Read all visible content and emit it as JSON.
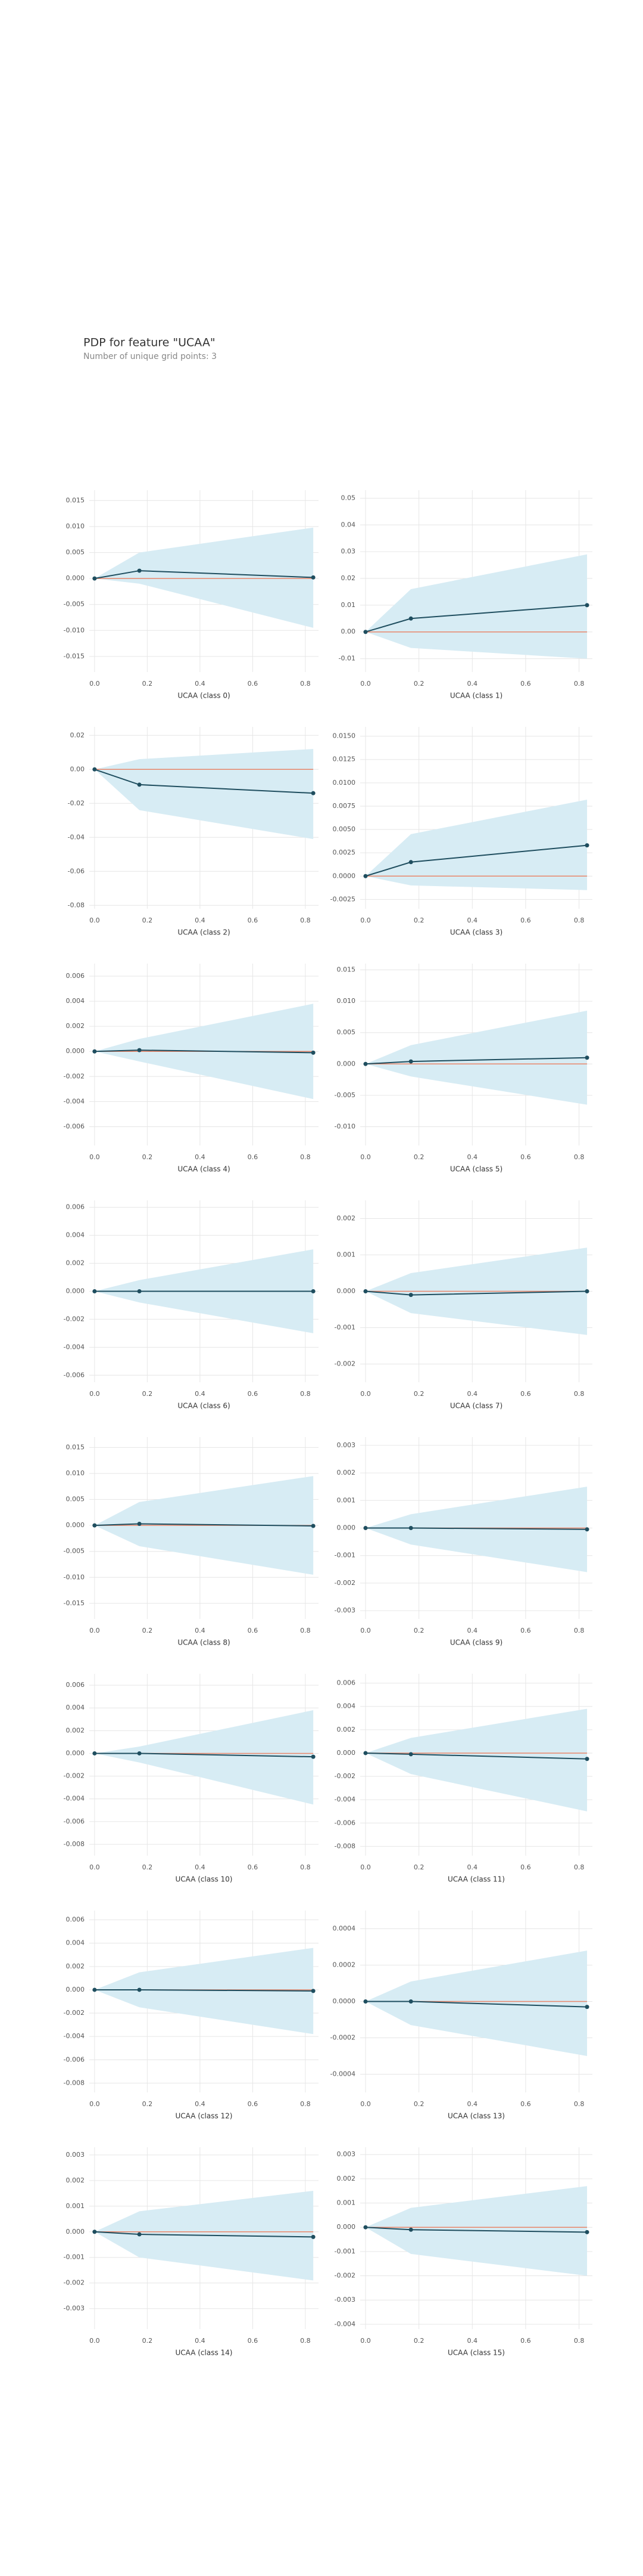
{
  "title": "PDP for feature \"UCAA\"",
  "subtitle": "Number of unique grid points: 3",
  "chart_data": [
    {
      "type": "line",
      "xlabel": "UCAA (class 0)",
      "x": [
        0,
        0.17,
        0.83
      ],
      "values": [
        0,
        0.0015,
        0.0002
      ],
      "upper": [
        0,
        0.005,
        0.0098
      ],
      "lower": [
        0,
        -0.001,
        -0.0095
      ],
      "xlim": [
        -0.02,
        0.85
      ],
      "ylim": [
        -0.018,
        0.017
      ],
      "xticks": [
        {
          "value": 0,
          "label": "0.0"
        },
        0.2,
        0.4,
        0.6,
        0.8
      ],
      "yticks": [
        0.015,
        {
          "value": 0.01,
          "label": "0.010"
        },
        0.005,
        {
          "value": 0,
          "label": "0.000"
        },
        -0.005,
        {
          "value": -0.01,
          "label": "-0.010"
        },
        -0.015
      ],
      "grid": true,
      "color": "#1f4e5f",
      "band_color": "#d7ecf4",
      "hline": 0,
      "hline_color": "#e8866a"
    },
    {
      "type": "line",
      "xlabel": "UCAA (class 1)",
      "x": [
        0,
        0.17,
        0.83
      ],
      "values": [
        0,
        0.005,
        0.01
      ],
      "upper": [
        0,
        0.016,
        0.029
      ],
      "lower": [
        0,
        -0.006,
        -0.01
      ],
      "xlim": [
        -0.02,
        0.85
      ],
      "ylim": [
        -0.015,
        0.053
      ],
      "xticks": [
        {
          "value": 0,
          "label": "0.0"
        },
        0.2,
        0.4,
        0.6,
        0.8
      ],
      "yticks": [
        0.05,
        0.04,
        0.03,
        0.02,
        0.01,
        {
          "value": 0,
          "label": "0.00"
        },
        -0.01
      ],
      "grid": true,
      "color": "#1f4e5f",
      "band_color": "#d7ecf4",
      "hline": 0,
      "hline_color": "#e8866a"
    },
    {
      "type": "line",
      "xlabel": "UCAA (class 2)",
      "x": [
        0,
        0.17,
        0.83
      ],
      "values": [
        0,
        -0.009,
        -0.014
      ],
      "upper": [
        0,
        0.006,
        0.012
      ],
      "lower": [
        0,
        -0.024,
        -0.041
      ],
      "xlim": [
        -0.02,
        0.85
      ],
      "ylim": [
        -0.082,
        0.025
      ],
      "xticks": [
        {
          "value": 0,
          "label": "0.0"
        },
        0.2,
        0.4,
        0.6,
        0.8
      ],
      "yticks": [
        0.02,
        {
          "value": 0,
          "label": "0.00"
        },
        -0.02,
        -0.04,
        -0.06,
        -0.08
      ],
      "grid": true,
      "color": "#1f4e5f",
      "band_color": "#d7ecf4",
      "hline": 0,
      "hline_color": "#e8866a"
    },
    {
      "type": "line",
      "xlabel": "UCAA (class 3)",
      "x": [
        0,
        0.17,
        0.83
      ],
      "values": [
        0,
        0.0015,
        0.0033
      ],
      "upper": [
        0,
        0.0045,
        0.0082
      ],
      "lower": [
        0,
        -0.001,
        -0.0015
      ],
      "xlim": [
        -0.02,
        0.85
      ],
      "ylim": [
        -0.0035,
        0.016
      ],
      "xticks": [
        {
          "value": 0,
          "label": "0.0"
        },
        0.2,
        0.4,
        0.6,
        0.8
      ],
      "yticks": [
        {
          "value": 0.015,
          "label": "0.0150"
        },
        0.0125,
        {
          "value": 0.01,
          "label": "0.0100"
        },
        0.0075,
        {
          "value": 0.005,
          "label": "0.0050"
        },
        0.0025,
        {
          "value": 0,
          "label": "0.0000"
        },
        -0.0025
      ],
      "grid": true,
      "color": "#1f4e5f",
      "band_color": "#d7ecf4",
      "hline": 0,
      "hline_color": "#e8866a"
    },
    {
      "type": "line",
      "xlabel": "UCAA (class 4)",
      "x": [
        0,
        0.17,
        0.83
      ],
      "values": [
        0,
        0.0001,
        -0.0001
      ],
      "upper": [
        0,
        0.001,
        0.0038
      ],
      "lower": [
        0,
        -0.0008,
        -0.0038
      ],
      "xlim": [
        -0.02,
        0.85
      ],
      "ylim": [
        -0.0075,
        0.007
      ],
      "xticks": [
        {
          "value": 0,
          "label": "0.0"
        },
        0.2,
        0.4,
        0.6,
        0.8
      ],
      "yticks": [
        0.006,
        0.004,
        0.002,
        {
          "value": 0,
          "label": "0.000"
        },
        -0.002,
        -0.004,
        -0.006
      ],
      "grid": true,
      "color": "#1f4e5f",
      "band_color": "#d7ecf4",
      "hline": 0,
      "hline_color": "#e8866a"
    },
    {
      "type": "line",
      "xlabel": "UCAA (class 5)",
      "x": [
        0,
        0.17,
        0.83
      ],
      "values": [
        0,
        0.0004,
        0.001
      ],
      "upper": [
        0,
        0.003,
        0.0085
      ],
      "lower": [
        0,
        -0.002,
        -0.0065
      ],
      "xlim": [
        -0.02,
        0.85
      ],
      "ylim": [
        -0.013,
        0.016
      ],
      "xticks": [
        {
          "value": 0,
          "label": "0.0"
        },
        0.2,
        0.4,
        0.6,
        0.8
      ],
      "yticks": [
        0.015,
        {
          "value": 0.01,
          "label": "0.010"
        },
        0.005,
        {
          "value": 0,
          "label": "0.000"
        },
        -0.005,
        {
          "value": -0.01,
          "label": "-0.010"
        }
      ],
      "grid": true,
      "color": "#1f4e5f",
      "band_color": "#d7ecf4",
      "hline": 0,
      "hline_color": "#e8866a"
    },
    {
      "type": "line",
      "xlabel": "UCAA (class 6)",
      "x": [
        0,
        0.17,
        0.83
      ],
      "values": [
        0,
        0,
        0
      ],
      "upper": [
        0,
        0.0008,
        0.003
      ],
      "lower": [
        0,
        -0.0008,
        -0.003
      ],
      "xlim": [
        -0.02,
        0.85
      ],
      "ylim": [
        -0.0065,
        0.0065
      ],
      "xticks": [
        {
          "value": 0,
          "label": "0.0"
        },
        0.2,
        0.4,
        0.6,
        0.8
      ],
      "yticks": [
        0.006,
        0.004,
        0.002,
        {
          "value": 0,
          "label": "0.000"
        },
        -0.002,
        -0.004,
        -0.006
      ],
      "grid": true,
      "color": "#1f4e5f",
      "band_color": "#d7ecf4",
      "hline": 0,
      "hline_color": "#e8866a"
    },
    {
      "type": "line",
      "xlabel": "UCAA (class 7)",
      "x": [
        0,
        0.17,
        0.83
      ],
      "values": [
        0,
        -0.0001,
        0
      ],
      "upper": [
        0,
        0.0005,
        0.0012
      ],
      "lower": [
        0,
        -0.0006,
        -0.0012
      ],
      "xlim": [
        -0.02,
        0.85
      ],
      "ylim": [
        -0.0025,
        0.0025
      ],
      "xticks": [
        {
          "value": 0,
          "label": "0.0"
        },
        0.2,
        0.4,
        0.6,
        0.8
      ],
      "yticks": [
        0.002,
        0.001,
        {
          "value": 0,
          "label": "0.000"
        },
        -0.001,
        -0.002
      ],
      "grid": true,
      "color": "#1f4e5f",
      "band_color": "#d7ecf4",
      "hline": 0,
      "hline_color": "#e8866a"
    },
    {
      "type": "line",
      "xlabel": "UCAA (class 8)",
      "x": [
        0,
        0.17,
        0.83
      ],
      "values": [
        0,
        0.0003,
        -0.0001
      ],
      "upper": [
        0,
        0.0045,
        0.0095
      ],
      "lower": [
        0,
        -0.004,
        -0.0095
      ],
      "xlim": [
        -0.02,
        0.85
      ],
      "ylim": [
        -0.018,
        0.017
      ],
      "xticks": [
        {
          "value": 0,
          "label": "0.0"
        },
        0.2,
        0.4,
        0.6,
        0.8
      ],
      "yticks": [
        0.015,
        {
          "value": 0.01,
          "label": "0.010"
        },
        0.005,
        {
          "value": 0,
          "label": "0.000"
        },
        -0.005,
        {
          "value": -0.01,
          "label": "-0.010"
        },
        -0.015
      ],
      "grid": true,
      "color": "#1f4e5f",
      "band_color": "#d7ecf4",
      "hline": 0,
      "hline_color": "#e8866a"
    },
    {
      "type": "line",
      "xlabel": "UCAA (class 9)",
      "x": [
        0,
        0.17,
        0.83
      ],
      "values": [
        0,
        0,
        -5e-05
      ],
      "upper": [
        0,
        0.0005,
        0.0015
      ],
      "lower": [
        0,
        -0.0006,
        -0.0016
      ],
      "xlim": [
        -0.02,
        0.85
      ],
      "ylim": [
        -0.0033,
        0.0033
      ],
      "xticks": [
        {
          "value": 0,
          "label": "0.0"
        },
        0.2,
        0.4,
        0.6,
        0.8
      ],
      "yticks": [
        0.003,
        0.002,
        0.001,
        {
          "value": 0,
          "label": "0.000"
        },
        -0.001,
        -0.002,
        -0.003
      ],
      "grid": true,
      "color": "#1f4e5f",
      "band_color": "#d7ecf4",
      "hline": 0,
      "hline_color": "#e8866a"
    },
    {
      "type": "line",
      "xlabel": "UCAA (class 10)",
      "x": [
        0,
        0.17,
        0.83
      ],
      "values": [
        0,
        0,
        -0.0003
      ],
      "upper": [
        0,
        0.0006,
        0.0038
      ],
      "lower": [
        0,
        -0.0008,
        -0.0045
      ],
      "xlim": [
        -0.02,
        0.85
      ],
      "ylim": [
        -0.009,
        0.007
      ],
      "xticks": [
        {
          "value": 0,
          "label": "0.0"
        },
        0.2,
        0.4,
        0.6,
        0.8
      ],
      "yticks": [
        0.006,
        0.004,
        0.002,
        {
          "value": 0,
          "label": "0.000"
        },
        -0.002,
        -0.004,
        -0.006,
        -0.008
      ],
      "grid": true,
      "color": "#1f4e5f",
      "band_color": "#d7ecf4",
      "hline": 0,
      "hline_color": "#e8866a"
    },
    {
      "type": "line",
      "xlabel": "UCAA (class 11)",
      "x": [
        0,
        0.17,
        0.83
      ],
      "values": [
        0,
        -0.0001,
        -0.0005
      ],
      "upper": [
        0,
        0.0013,
        0.0038
      ],
      "lower": [
        0,
        -0.0018,
        -0.005
      ],
      "xlim": [
        -0.02,
        0.85
      ],
      "ylim": [
        -0.0088,
        0.0068
      ],
      "xticks": [
        {
          "value": 0,
          "label": "0.0"
        },
        0.2,
        0.4,
        0.6,
        0.8
      ],
      "yticks": [
        0.006,
        0.004,
        0.002,
        {
          "value": 0,
          "label": "0.000"
        },
        -0.002,
        -0.004,
        -0.006,
        -0.008
      ],
      "grid": true,
      "color": "#1f4e5f",
      "band_color": "#d7ecf4",
      "hline": 0,
      "hline_color": "#e8866a"
    },
    {
      "type": "line",
      "xlabel": "UCAA (class 12)",
      "x": [
        0,
        0.17,
        0.83
      ],
      "values": [
        0,
        0,
        -0.0001
      ],
      "upper": [
        0,
        0.0015,
        0.0036
      ],
      "lower": [
        0,
        -0.0015,
        -0.0038
      ],
      "xlim": [
        -0.02,
        0.85
      ],
      "ylim": [
        -0.0088,
        0.0068
      ],
      "xticks": [
        {
          "value": 0,
          "label": "0.0"
        },
        0.2,
        0.4,
        0.6,
        0.8
      ],
      "yticks": [
        0.006,
        0.004,
        0.002,
        {
          "value": 0,
          "label": "0.000"
        },
        -0.002,
        -0.004,
        -0.006,
        -0.008
      ],
      "grid": true,
      "color": "#1f4e5f",
      "band_color": "#d7ecf4",
      "hline": 0,
      "hline_color": "#e8866a"
    },
    {
      "type": "line",
      "xlabel": "UCAA (class 13)",
      "x": [
        0,
        0.17,
        0.83
      ],
      "values": [
        0,
        0,
        -3e-05
      ],
      "upper": [
        0,
        0.00011,
        0.00028
      ],
      "lower": [
        0,
        -0.00013,
        -0.0003
      ],
      "xlim": [
        -0.02,
        0.85
      ],
      "ylim": [
        -0.0005,
        0.0005
      ],
      "xticks": [
        {
          "value": 0,
          "label": "0.0"
        },
        0.2,
        0.4,
        0.6,
        0.8
      ],
      "yticks": [
        0.0004,
        0.0002,
        {
          "value": 0,
          "label": "0.0000"
        },
        -0.0002,
        -0.0004
      ],
      "grid": true,
      "color": "#1f4e5f",
      "band_color": "#d7ecf4",
      "hline": 0,
      "hline_color": "#e8866a"
    },
    {
      "type": "line",
      "xlabel": "UCAA (class 14)",
      "x": [
        0,
        0.17,
        0.83
      ],
      "values": [
        0,
        -0.0001,
        -0.0002
      ],
      "upper": [
        0,
        0.0008,
        0.0016
      ],
      "lower": [
        0,
        -0.001,
        -0.0019
      ],
      "xlim": [
        -0.02,
        0.85
      ],
      "ylim": [
        -0.0038,
        0.0033
      ],
      "xticks": [
        {
          "value": 0,
          "label": "0.0"
        },
        0.2,
        0.4,
        0.6,
        0.8
      ],
      "yticks": [
        0.003,
        0.002,
        0.001,
        {
          "value": 0,
          "label": "0.000"
        },
        -0.001,
        -0.002,
        -0.003
      ],
      "grid": true,
      "color": "#1f4e5f",
      "band_color": "#d7ecf4",
      "hline": 0,
      "hline_color": "#e8866a"
    },
    {
      "type": "line",
      "xlabel": "UCAA (class 15)",
      "x": [
        0,
        0.17,
        0.83
      ],
      "values": [
        0,
        -0.0001,
        -0.0002
      ],
      "upper": [
        0,
        0.0008,
        0.0017
      ],
      "lower": [
        0,
        -0.0011,
        -0.002
      ],
      "xlim": [
        -0.02,
        0.85
      ],
      "ylim": [
        -0.0042,
        0.0033
      ],
      "xticks": [
        {
          "value": 0,
          "label": "0.0"
        },
        0.2,
        0.4,
        0.6,
        0.8
      ],
      "yticks": [
        0.003,
        0.002,
        0.001,
        {
          "value": 0,
          "label": "0.000"
        },
        -0.001,
        -0.002,
        -0.003,
        -0.004
      ],
      "grid": true,
      "color": "#1f4e5f",
      "band_color": "#d7ecf4",
      "hline": 0,
      "hline_color": "#e8866a"
    }
  ]
}
